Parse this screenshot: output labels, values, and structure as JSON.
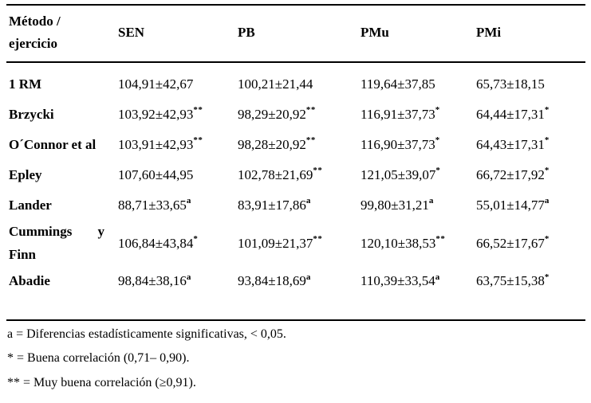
{
  "table": {
    "header": {
      "method": "Método / ejercicio",
      "cols": [
        "SEN",
        "PB",
        "PMu",
        "PMi"
      ]
    },
    "rows": [
      {
        "label": "1 RM",
        "cells": [
          {
            "v": "104,91±42,67",
            "s": ""
          },
          {
            "v": "100,21±21,44",
            "s": ""
          },
          {
            "v": "119,64±37,85",
            "s": ""
          },
          {
            "v": "65,73±18,15",
            "s": ""
          }
        ]
      },
      {
        "label": "Brzycki",
        "cells": [
          {
            "v": "103,92±42,93",
            "s": "**"
          },
          {
            "v": "98,29±20,92",
            "s": "**"
          },
          {
            "v": "116,91±37,73",
            "s": "*"
          },
          {
            "v": "64,44±17,31",
            "s": "*"
          }
        ]
      },
      {
        "label": "O´Connor et al",
        "cells": [
          {
            "v": "103,91±42,93",
            "s": "**"
          },
          {
            "v": "98,28±20,92",
            "s": "**"
          },
          {
            "v": "116,90±37,73",
            "s": "*"
          },
          {
            "v": "64,43±17,31",
            "s": "*"
          }
        ]
      },
      {
        "label": "Epley",
        "cells": [
          {
            "v": "107,60±44,95",
            "s": ""
          },
          {
            "v": "102,78±21,69",
            "s": "**"
          },
          {
            "v": "121,05±39,07",
            "s": "*"
          },
          {
            "v": "66,72±17,92",
            "s": "*"
          }
        ]
      },
      {
        "label": "Lander",
        "cells": [
          {
            "v": "88,71±33,65",
            "s": "a"
          },
          {
            "v": "83,91±17,86",
            "s": "a"
          },
          {
            "v": "99,80±31,21",
            "s": "a"
          },
          {
            "v": "55,01±14,77",
            "s": "a"
          }
        ]
      },
      {
        "label": "Cummings y Finn",
        "cells": [
          {
            "v": "106,84±43,84",
            "s": "*"
          },
          {
            "v": "101,09±21,37",
            "s": "**"
          },
          {
            "v": "120,10±38,53",
            "s": "**"
          },
          {
            "v": "66,52±17,67",
            "s": "*"
          }
        ]
      },
      {
        "label": "Abadie",
        "cells": [
          {
            "v": "98,84±38,16",
            "s": "a"
          },
          {
            "v": "93,84±18,69",
            "s": "a"
          },
          {
            "v": "110,39±33,54",
            "s": "a"
          },
          {
            "v": "63,75±15,38",
            "s": "*"
          }
        ]
      }
    ]
  },
  "footnotes": [
    "a = Diferencias estadísticamente significativas, < 0,05.",
    "* = Buena correlación (0,71– 0,90).",
    "** = Muy buena correlación (≥0,91)."
  ],
  "colors": {
    "text": "#000000",
    "background": "#ffffff",
    "rule": "#000000"
  }
}
